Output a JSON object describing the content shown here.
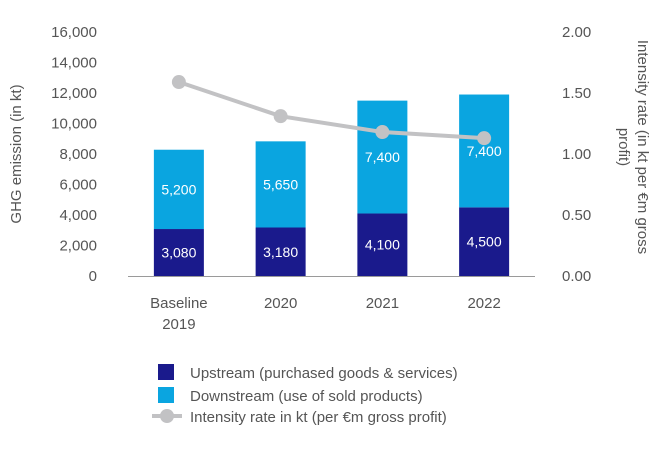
{
  "chart_data": {
    "type": "bar+line",
    "categories": [
      [
        "Baseline",
        "2019"
      ],
      [
        "2020"
      ],
      [
        "2021"
      ],
      [
        "2022"
      ]
    ],
    "series": [
      {
        "name": "Upstream (purchased goods & services)",
        "kind": "stacked-bar",
        "axis": "left",
        "color": "#1a1a8c",
        "values": [
          3080,
          3180,
          4100,
          4500
        ],
        "labels": [
          "3,080",
          "3,180",
          "4,100",
          "4,500"
        ]
      },
      {
        "name": "Downstream (use of sold products)",
        "kind": "stacked-bar",
        "axis": "left",
        "color": "#0aa5e0",
        "values": [
          5200,
          5650,
          7400,
          7400
        ],
        "labels": [
          "5,200",
          "5,650",
          "7,400",
          "7,400"
        ]
      },
      {
        "name": "Intensity rate in kt (per €m gross profit)",
        "kind": "line",
        "axis": "right",
        "color": "#c2c2c4",
        "values": [
          1.59,
          1.31,
          1.18,
          1.13
        ]
      }
    ],
    "y_left": {
      "label": "GHG emission (in kt)",
      "min": 0,
      "max": 16000,
      "ticks": [
        "0",
        "2,000",
        "4,000",
        "6,000",
        "8,000",
        "10,000",
        "12,000",
        "14,000",
        "16,000"
      ]
    },
    "y_right": {
      "label": [
        "Intensity rate (in kt per €m gross",
        "profit)"
      ],
      "min": 0,
      "max": 2,
      "ticks": [
        "0.00",
        "0.50",
        "1.00",
        "1.50",
        "2.00"
      ]
    },
    "legend": {
      "position": "bottom"
    },
    "grid": false
  }
}
